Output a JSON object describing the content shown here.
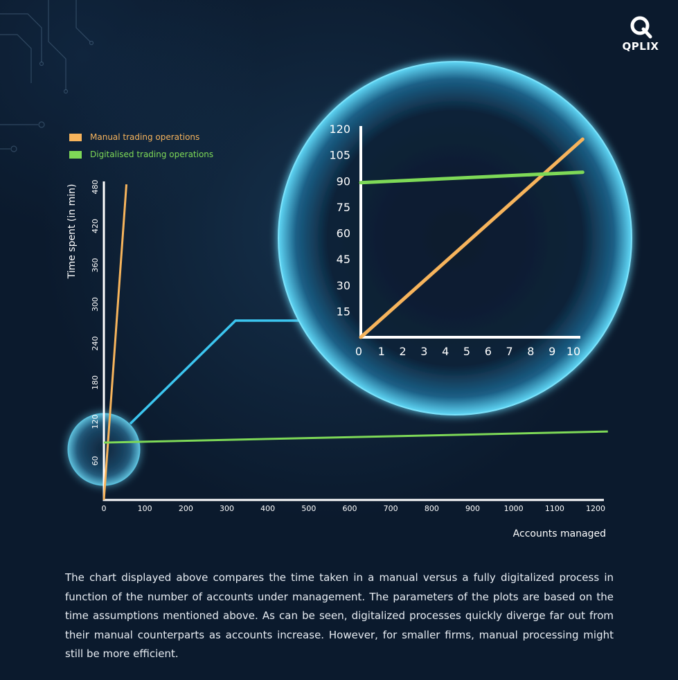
{
  "brand": {
    "logo_text": "QPLIX"
  },
  "colors": {
    "manual": "#f7b45c",
    "digital": "#7ed957",
    "connector": "#3cc6f0",
    "axis": "#ffffff"
  },
  "chart_data": {
    "type": "line",
    "series": [
      {
        "name": "Manual trading operations",
        "color": "#f7b45c",
        "x": [
          0,
          55
        ],
        "y": [
          0,
          484
        ]
      },
      {
        "name": "Digitalised trading operations",
        "color": "#7ed957",
        "x": [
          0,
          1230
        ],
        "y": [
          88,
          105
        ]
      }
    ],
    "xlabel": "Accounts managed",
    "ylabel": "Time spent (in min)",
    "xticks": [
      0,
      100,
      200,
      300,
      400,
      500,
      600,
      700,
      800,
      900,
      1000,
      1100,
      1200
    ],
    "yticks": [
      60,
      120,
      180,
      240,
      300,
      360,
      420,
      480
    ],
    "xlim": [
      0,
      1220
    ],
    "ylim": [
      0,
      500
    ],
    "legend_position": "top-left",
    "inset": {
      "type": "line",
      "xticks": [
        0,
        1,
        2,
        3,
        4,
        5,
        6,
        7,
        8,
        9,
        10
      ],
      "yticks": [
        15,
        30,
        45,
        60,
        75,
        90,
        105,
        120
      ],
      "xlim": [
        0,
        10.3
      ],
      "ylim": [
        0,
        121
      ],
      "series": [
        {
          "name": "Manual trading operations",
          "color": "#f7b45c",
          "x": [
            0,
            10.4
          ],
          "y": [
            0,
            114
          ]
        },
        {
          "name": "Digitalised trading operations",
          "color": "#7ed957",
          "x": [
            0,
            10.4
          ],
          "y": [
            89,
            95
          ]
        }
      ]
    }
  },
  "caption": "The chart displayed above compares the time taken in a manual versus a fully digitalized process in function of the number of accounts under management. The parameters of the plots are based on the time assumptions mentioned above. As can be seen, digitalized processes quickly diverge far out from their manual counterparts as accounts increase. However, for smaller firms, manual processing might still be more efficient."
}
